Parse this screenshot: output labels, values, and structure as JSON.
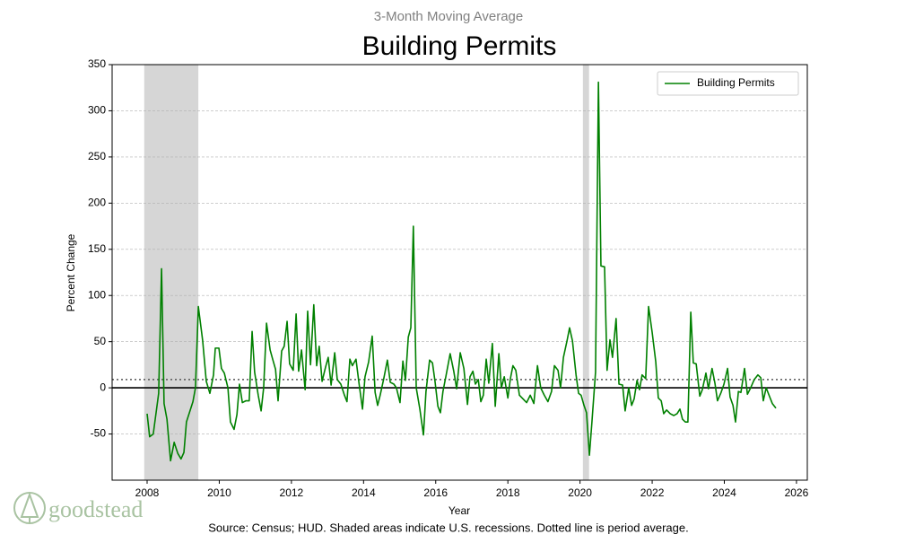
{
  "chart_data": {
    "type": "line",
    "subtitle": "3-Month Moving Average",
    "title": "Building Permits",
    "x_label": "Year",
    "y_label": "Percent Change",
    "source": "Source: Census; HUD. Shaded areas indicate U.S. recessions. Dotted line is period average.",
    "logo": "goodstead",
    "legend_position": "upper right",
    "grid": true,
    "xlim": [
      2007.03,
      2026.3
    ],
    "xticks": [
      2008,
      2010,
      2012,
      2014,
      2016,
      2018,
      2020,
      2022,
      2024,
      2026
    ],
    "ylim": [
      -100,
      350
    ],
    "yticks": [
      -50,
      0,
      50,
      100,
      150,
      200,
      250,
      300,
      350
    ],
    "recessions": [
      [
        2007.92,
        2009.42
      ],
      [
        2020.08,
        2020.25
      ]
    ],
    "recession_color": "#d6d6d6",
    "average": 9,
    "x": [
      2008.0,
      2008.07,
      2008.17,
      2008.32,
      2008.4,
      2008.47,
      2008.55,
      2008.65,
      2008.75,
      2008.85,
      2008.94,
      2009.02,
      2009.09,
      2009.27,
      2009.34,
      2009.42,
      2009.54,
      2009.64,
      2009.74,
      2009.84,
      2009.89,
      2009.99,
      2010.06,
      2010.14,
      2010.24,
      2010.31,
      2010.41,
      2010.49,
      2010.56,
      2010.64,
      2010.74,
      2010.83,
      2010.91,
      2010.98,
      2011.08,
      2011.16,
      2011.23,
      2011.31,
      2011.41,
      2011.48,
      2011.56,
      2011.63,
      2011.73,
      2011.8,
      2011.88,
      2011.95,
      2012.05,
      2012.13,
      2012.2,
      2012.28,
      2012.38,
      2012.45,
      2012.53,
      2012.62,
      2012.7,
      2012.77,
      2012.85,
      2012.95,
      2013.02,
      2013.1,
      2013.2,
      2013.27,
      2013.37,
      2013.47,
      2013.54,
      2013.62,
      2013.69,
      2013.79,
      2013.87,
      2013.97,
      2014.04,
      2014.14,
      2014.24,
      2014.32,
      2014.39,
      2014.46,
      2014.56,
      2014.66,
      2014.74,
      2014.84,
      2014.91,
      2015.01,
      2015.09,
      2015.16,
      2015.24,
      2015.31,
      2015.38,
      2015.46,
      2015.56,
      2015.66,
      2015.73,
      2015.83,
      2015.91,
      2015.98,
      2016.06,
      2016.13,
      2016.2,
      2016.28,
      2016.4,
      2016.5,
      2016.58,
      2016.68,
      2016.78,
      2016.88,
      2016.95,
      2017.03,
      2017.1,
      2017.18,
      2017.25,
      2017.32,
      2017.4,
      2017.47,
      2017.57,
      2017.65,
      2017.75,
      2017.82,
      2017.9,
      2018.0,
      2018.07,
      2018.14,
      2018.22,
      2018.32,
      2018.42,
      2018.52,
      2018.62,
      2018.72,
      2018.82,
      2018.91,
      2019.01,
      2019.11,
      2019.21,
      2019.29,
      2019.39,
      2019.46,
      2019.54,
      2019.64,
      2019.71,
      2019.79,
      2019.89,
      2019.96,
      2020.03,
      2020.11,
      2020.18,
      2020.26,
      2020.33,
      2020.43,
      2020.51,
      2020.58,
      2020.68,
      2020.75,
      2020.83,
      2020.9,
      2021.0,
      2021.08,
      2021.18,
      2021.25,
      2021.35,
      2021.43,
      2021.5,
      2021.58,
      2021.65,
      2021.72,
      2021.82,
      2021.9,
      2022.0,
      2022.1,
      2022.17,
      2022.25,
      2022.32,
      2022.4,
      2022.5,
      2022.6,
      2022.69,
      2022.77,
      2022.84,
      2022.92,
      2022.99,
      2023.07,
      2023.14,
      2023.22,
      2023.32,
      2023.39,
      2023.49,
      2023.56,
      2023.66,
      2023.74,
      2023.81,
      2023.91,
      2023.99,
      2024.09,
      2024.16,
      2024.24,
      2024.31,
      2024.39,
      2024.46,
      2024.56,
      2024.64,
      2024.73,
      2024.83,
      2024.93,
      2025.01,
      2025.08,
      2025.16,
      2025.26,
      2025.33,
      2025.43
    ],
    "series": [
      {
        "name": "Building Permits",
        "color": "#008000",
        "values": [
          -28,
          -53,
          -50,
          -6,
          129,
          -17,
          -34,
          -79,
          -59,
          -71,
          -77,
          -70,
          -37,
          -15,
          0,
          88,
          51,
          7,
          -6,
          14,
          43,
          43,
          21,
          16,
          0,
          -37,
          -45,
          -29,
          4,
          -16,
          -14,
          -14,
          61,
          17,
          -8,
          -25,
          0,
          70,
          41,
          31,
          20,
          -14,
          40,
          45,
          72,
          26,
          19,
          80,
          18,
          41,
          -2,
          83,
          25,
          90,
          24,
          45,
          7,
          23,
          33,
          3,
          38,
          9,
          4,
          -8,
          -15,
          31,
          24,
          31,
          6,
          -23,
          12,
          28,
          56,
          -5,
          -19,
          -8,
          10,
          30,
          6,
          4,
          0,
          -16,
          29,
          8,
          55,
          65,
          175,
          0,
          -23,
          -51,
          -4,
          30,
          27,
          7,
          -20,
          -27,
          -4,
          12,
          37,
          18,
          -1,
          38,
          21,
          -18,
          12,
          18,
          4,
          9,
          -15,
          -8,
          31,
          5,
          48,
          -20,
          37,
          0,
          12,
          -11,
          10,
          24,
          19,
          -8,
          -12,
          -16,
          -8,
          -17,
          24,
          0,
          -8,
          -15,
          -4,
          24,
          19,
          0,
          33,
          51,
          65,
          51,
          14,
          -6,
          -8,
          -19,
          -27,
          -73,
          -37,
          17,
          331,
          132,
          131,
          19,
          52,
          33,
          75,
          4,
          3,
          -25,
          0,
          -19,
          -12,
          8,
          -2,
          14,
          10,
          88,
          60,
          28,
          -11,
          -14,
          -28,
          -24,
          -28,
          -30,
          -28,
          -23,
          -34,
          -37,
          -37,
          82,
          27,
          26,
          -9,
          -2,
          16,
          -1,
          21,
          5,
          -14,
          -5,
          4,
          21,
          -10,
          -19,
          -37,
          -4,
          -5,
          21,
          -7,
          0,
          9,
          14,
          11,
          -14,
          0,
          -10,
          -17,
          -22
        ]
      }
    ]
  }
}
